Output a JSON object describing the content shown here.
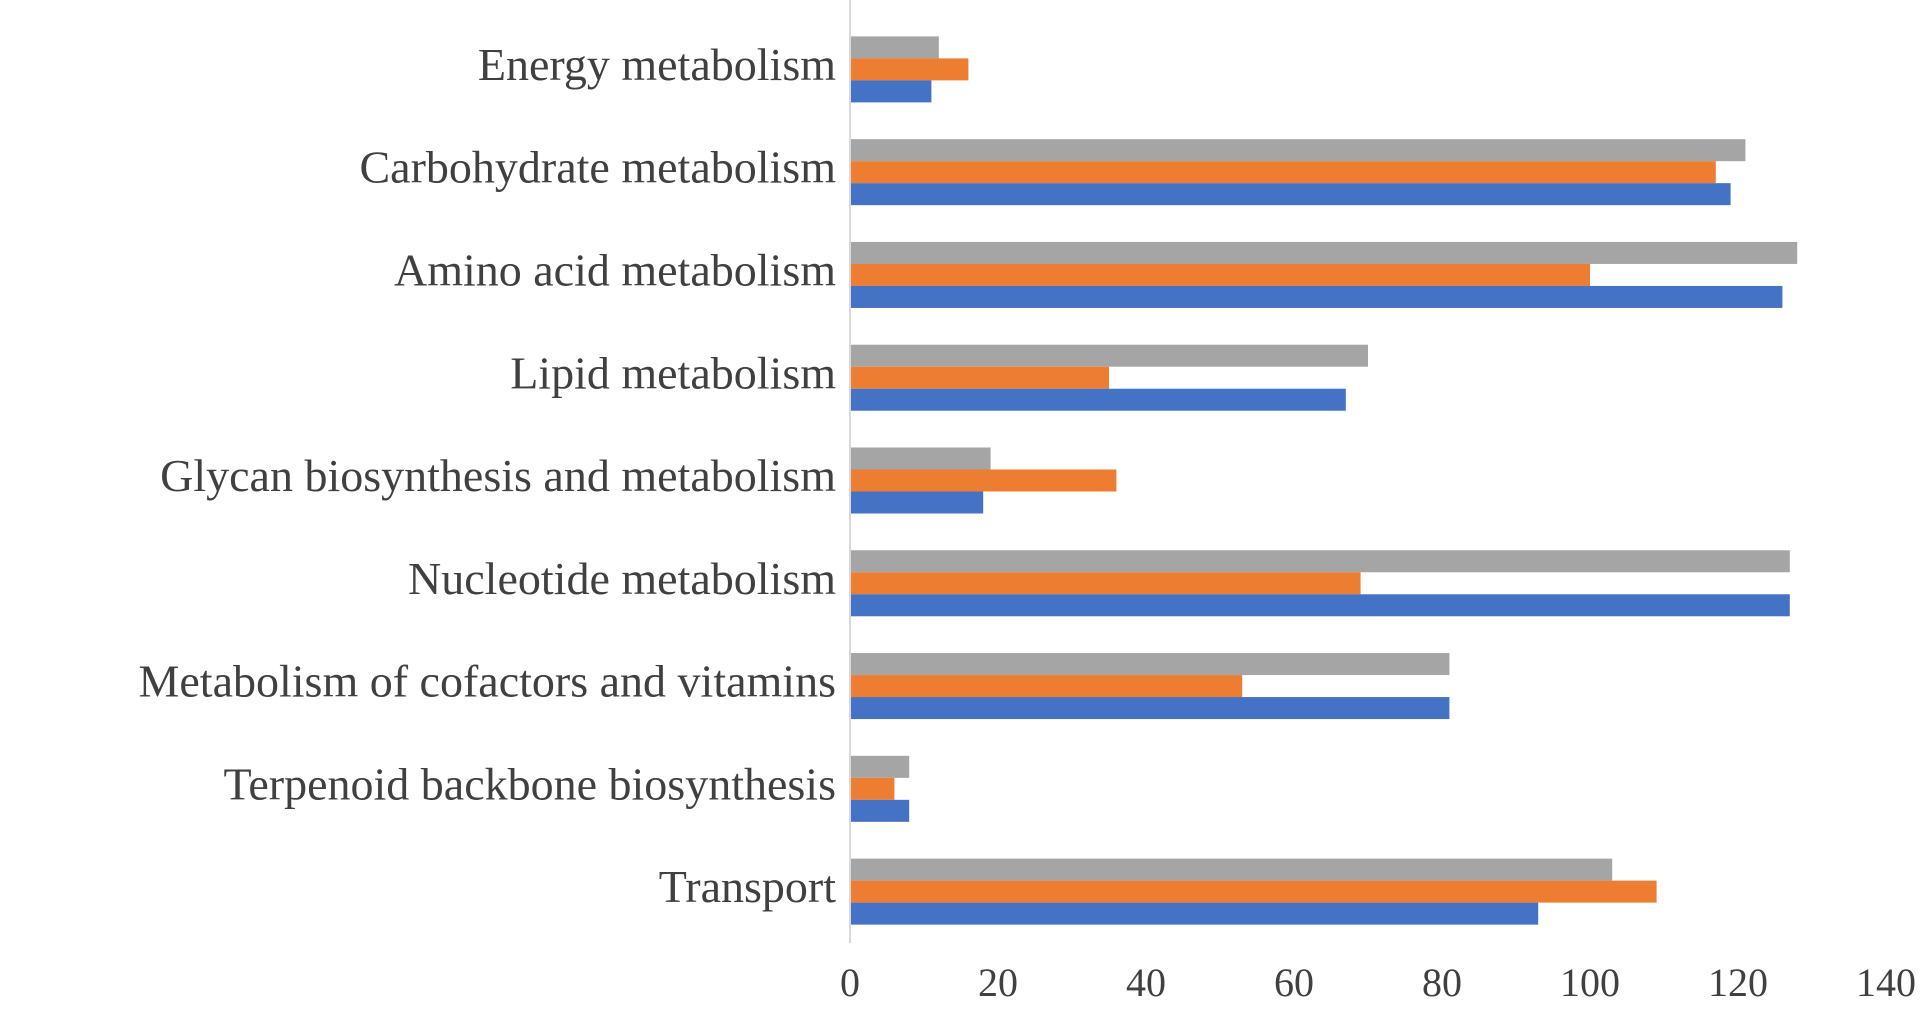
{
  "chart_data": {
    "type": "hbar",
    "categories": [
      "Energy metabolism",
      "Carbohydrate metabolism",
      "Amino acid metabolism",
      "Lipid metabolism",
      "Glycan biosynthesis and metabolism",
      "Nucleotide metabolism",
      "Metabolism of cofactors and vitamins",
      "Terpenoid backbone biosynthesis",
      "Transport"
    ],
    "series": [
      {
        "color": "#a5a5a5",
        "values": [
          12,
          121,
          128,
          70,
          19,
          127,
          81,
          8,
          103
        ]
      },
      {
        "color": "#ed7d31",
        "values": [
          16,
          117,
          100,
          35,
          36,
          69,
          53,
          6,
          109
        ]
      },
      {
        "color": "#4472c4",
        "values": [
          11,
          119,
          126,
          67,
          18,
          127,
          81,
          8,
          93
        ]
      }
    ],
    "xlim": [
      0,
      140
    ],
    "xticks": [
      0,
      20,
      40,
      60,
      80,
      100,
      120,
      140
    ],
    "grid": false
  }
}
